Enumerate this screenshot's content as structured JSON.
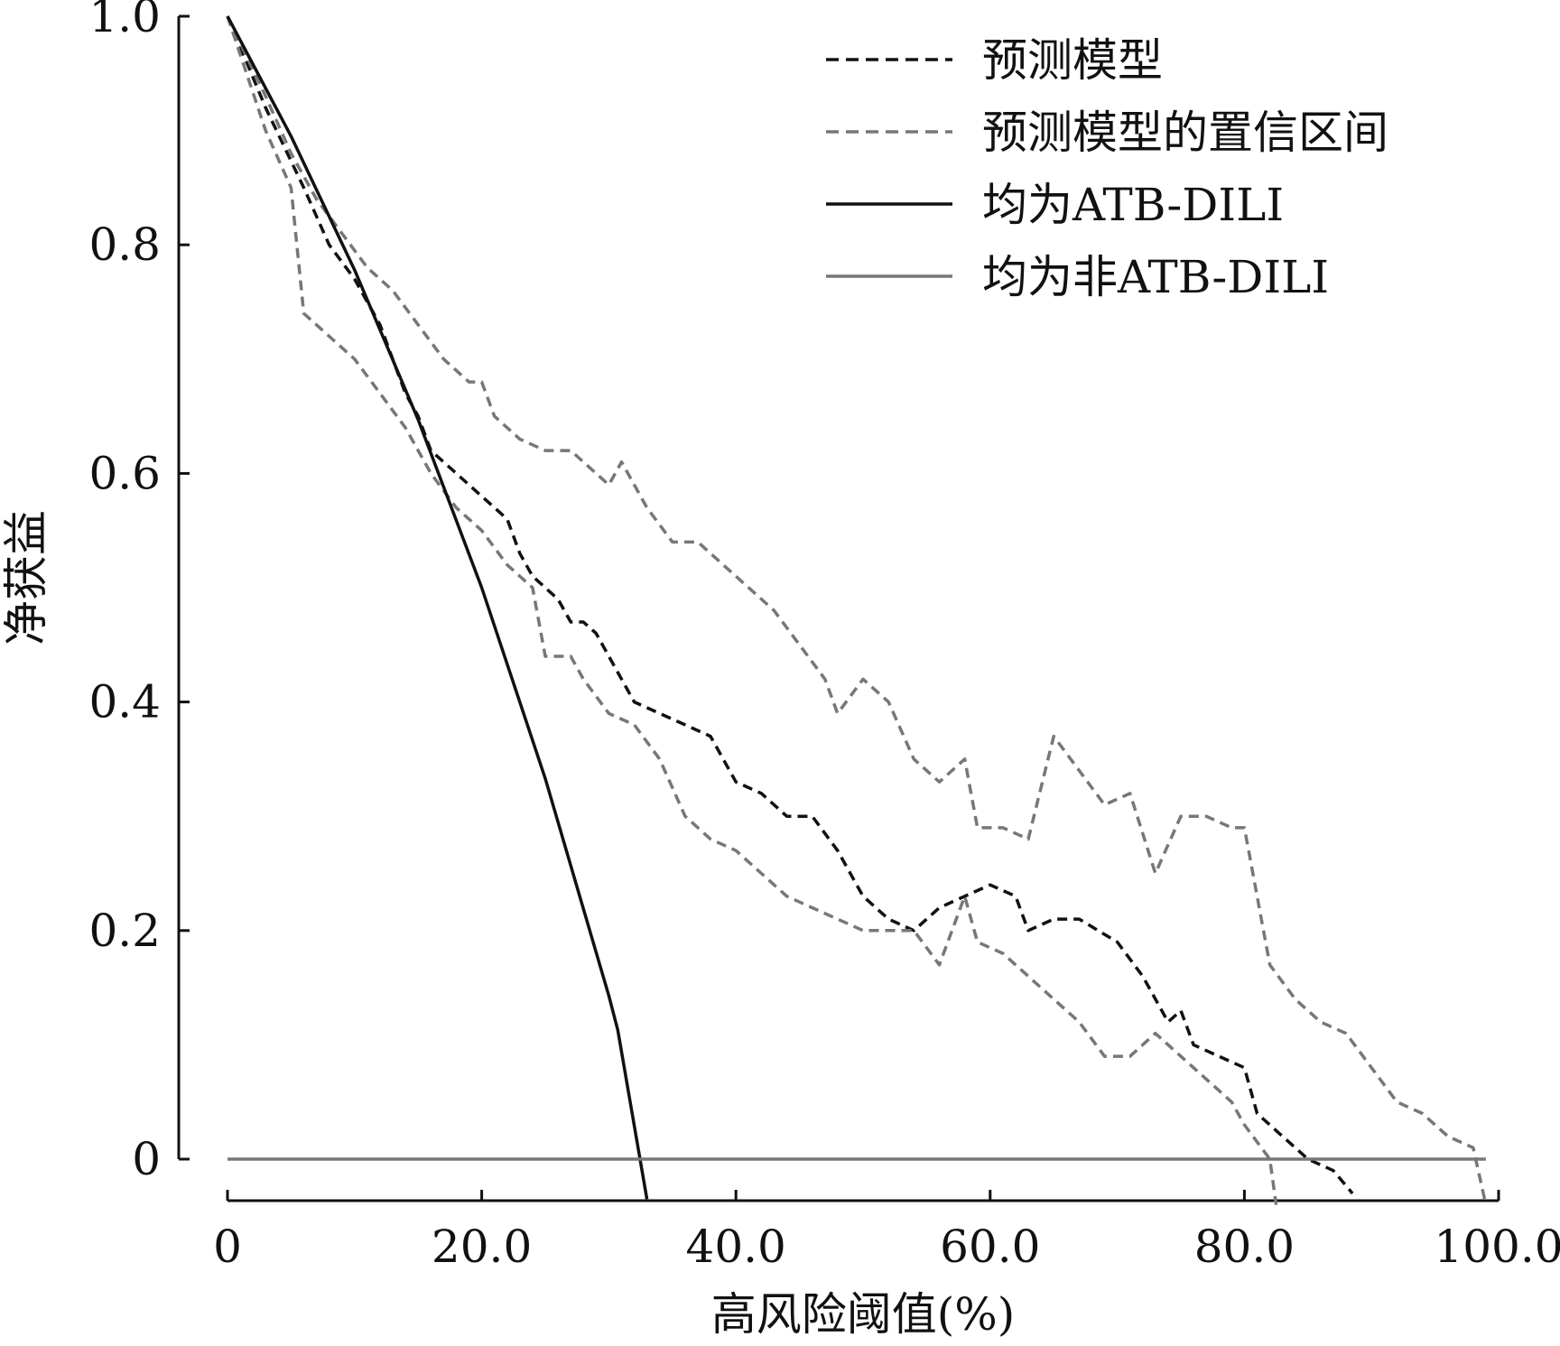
{
  "chart_data": {
    "type": "line",
    "xlabel": "高风险阈值(%)",
    "ylabel": "净获益",
    "xlim": [
      0,
      100
    ],
    "ylim": [
      -0.035,
      1.0
    ],
    "x_ticks": [
      "0",
      "20.0",
      "40.0",
      "60.0",
      "80.0",
      "100.0"
    ],
    "y_ticks": [
      "0",
      "0.2",
      "0.4",
      "0.6",
      "0.8",
      "1.0"
    ],
    "legend_position": "top-right",
    "series": [
      {
        "name": "预测模型",
        "style": "dashed",
        "color": "#111111",
        "points": [
          [
            0,
            1.0
          ],
          [
            3,
            0.92
          ],
          [
            6,
            0.85
          ],
          [
            8,
            0.8
          ],
          [
            10,
            0.77
          ],
          [
            12,
            0.73
          ],
          [
            13,
            0.7
          ],
          [
            14,
            0.67
          ],
          [
            15,
            0.65
          ],
          [
            16,
            0.62
          ],
          [
            18,
            0.6
          ],
          [
            20,
            0.58
          ],
          [
            22,
            0.56
          ],
          [
            23,
            0.53
          ],
          [
            24,
            0.51
          ],
          [
            25,
            0.5
          ],
          [
            26,
            0.49
          ],
          [
            27,
            0.47
          ],
          [
            28,
            0.47
          ],
          [
            29,
            0.46
          ],
          [
            30,
            0.44
          ],
          [
            32,
            0.4
          ],
          [
            34,
            0.39
          ],
          [
            36,
            0.38
          ],
          [
            38,
            0.37
          ],
          [
            40,
            0.33
          ],
          [
            42,
            0.32
          ],
          [
            44,
            0.3
          ],
          [
            46,
            0.3
          ],
          [
            48,
            0.27
          ],
          [
            50,
            0.23
          ],
          [
            52,
            0.21
          ],
          [
            54,
            0.2
          ],
          [
            56,
            0.22
          ],
          [
            58,
            0.23
          ],
          [
            60,
            0.24
          ],
          [
            62,
            0.23
          ],
          [
            63,
            0.2
          ],
          [
            65,
            0.21
          ],
          [
            67,
            0.21
          ],
          [
            70,
            0.19
          ],
          [
            72,
            0.16
          ],
          [
            74,
            0.12
          ],
          [
            75,
            0.13
          ],
          [
            76,
            0.1
          ],
          [
            78,
            0.09
          ],
          [
            80,
            0.08
          ],
          [
            81,
            0.04
          ],
          [
            83,
            0.02
          ],
          [
            85,
            0.0
          ],
          [
            87,
            -0.01
          ],
          [
            88.5,
            -0.03
          ]
        ]
      },
      {
        "name": "预测模型的置信区间",
        "style": "dashed",
        "color": "#777777",
        "points": [
          [
            0,
            1.0
          ],
          [
            3,
            0.93
          ],
          [
            5,
            0.88
          ],
          [
            7,
            0.84
          ],
          [
            9,
            0.81
          ],
          [
            11,
            0.78
          ],
          [
            13,
            0.76
          ],
          [
            15,
            0.73
          ],
          [
            17,
            0.7
          ],
          [
            19,
            0.68
          ],
          [
            20,
            0.68
          ],
          [
            21,
            0.65
          ],
          [
            23,
            0.63
          ],
          [
            25,
            0.62
          ],
          [
            27,
            0.62
          ],
          [
            28,
            0.61
          ],
          [
            30,
            0.59
          ],
          [
            31,
            0.61
          ],
          [
            33,
            0.57
          ],
          [
            35,
            0.54
          ],
          [
            37,
            0.54
          ],
          [
            39,
            0.52
          ],
          [
            41,
            0.5
          ],
          [
            43,
            0.48
          ],
          [
            45,
            0.45
          ],
          [
            47,
            0.42
          ],
          [
            48,
            0.39
          ],
          [
            50,
            0.42
          ],
          [
            52,
            0.4
          ],
          [
            54,
            0.35
          ],
          [
            56,
            0.33
          ],
          [
            58,
            0.35
          ],
          [
            59,
            0.29
          ],
          [
            61,
            0.29
          ],
          [
            63,
            0.28
          ],
          [
            65,
            0.37
          ],
          [
            67,
            0.34
          ],
          [
            69,
            0.31
          ],
          [
            71,
            0.32
          ],
          [
            73,
            0.25
          ],
          [
            75,
            0.3
          ],
          [
            77,
            0.3
          ],
          [
            79,
            0.29
          ],
          [
            80,
            0.29
          ],
          [
            82,
            0.17
          ],
          [
            84,
            0.14
          ],
          [
            86,
            0.12
          ],
          [
            88,
            0.11
          ],
          [
            90,
            0.08
          ],
          [
            92,
            0.05
          ],
          [
            94,
            0.04
          ],
          [
            96,
            0.02
          ],
          [
            98,
            0.01
          ],
          [
            99,
            -0.04
          ]
        ]
      },
      {
        "name": "",
        "style": "dashed",
        "color": "#777777",
        "points": [
          [
            0,
            1.0
          ],
          [
            3,
            0.9
          ],
          [
            5,
            0.85
          ],
          [
            6,
            0.74
          ],
          [
            8,
            0.72
          ],
          [
            10,
            0.7
          ],
          [
            12,
            0.67
          ],
          [
            14,
            0.64
          ],
          [
            16,
            0.6
          ],
          [
            18,
            0.57
          ],
          [
            20,
            0.55
          ],
          [
            22,
            0.52
          ],
          [
            24,
            0.5
          ],
          [
            25,
            0.44
          ],
          [
            27,
            0.44
          ],
          [
            28,
            0.42
          ],
          [
            30,
            0.39
          ],
          [
            32,
            0.38
          ],
          [
            34,
            0.35
          ],
          [
            36,
            0.3
          ],
          [
            38,
            0.28
          ],
          [
            40,
            0.27
          ],
          [
            42,
            0.25
          ],
          [
            44,
            0.23
          ],
          [
            46,
            0.22
          ],
          [
            48,
            0.21
          ],
          [
            50,
            0.2
          ],
          [
            52,
            0.2
          ],
          [
            54,
            0.2
          ],
          [
            56,
            0.17
          ],
          [
            58,
            0.23
          ],
          [
            59,
            0.19
          ],
          [
            61,
            0.18
          ],
          [
            63,
            0.16
          ],
          [
            65,
            0.14
          ],
          [
            67,
            0.12
          ],
          [
            69,
            0.09
          ],
          [
            71,
            0.09
          ],
          [
            73,
            0.11
          ],
          [
            75,
            0.09
          ],
          [
            77,
            0.07
          ],
          [
            79,
            0.05
          ],
          [
            80,
            0.03
          ],
          [
            82,
            0.0
          ],
          [
            82.5,
            -0.04
          ]
        ]
      },
      {
        "name": "均为ATB-DILI",
        "style": "solid",
        "color": "#111111",
        "points": [
          [
            0,
            1.0
          ],
          [
            5,
            0.895
          ],
          [
            10,
            0.778
          ],
          [
            15,
            0.647
          ],
          [
            20,
            0.5
          ],
          [
            25,
            0.333
          ],
          [
            30,
            0.143
          ],
          [
            30.7,
            0.113
          ],
          [
            33,
            -0.035
          ]
        ]
      },
      {
        "name": "均为非ATB-DILI",
        "style": "solid",
        "color": "#777777",
        "points": [
          [
            0,
            0.0
          ],
          [
            99,
            0.0
          ]
        ]
      }
    ]
  }
}
